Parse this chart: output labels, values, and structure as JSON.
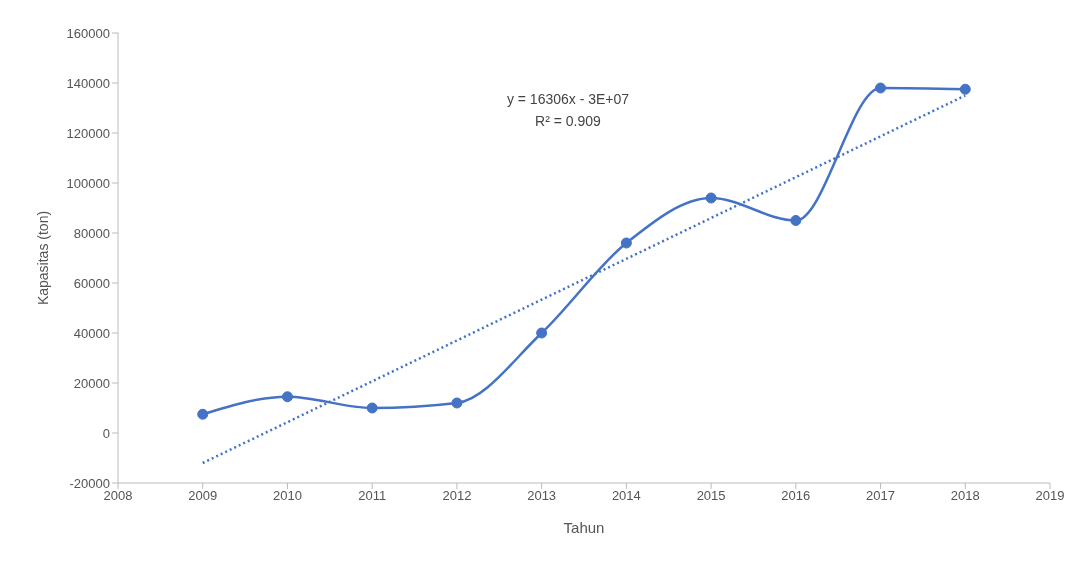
{
  "chart_data": {
    "type": "line",
    "xlabel": "Tahun",
    "ylabel": "Kapasitas (ton)",
    "x": [
      2009,
      2010,
      2011,
      2012,
      2013,
      2014,
      2015,
      2016,
      2017,
      2018
    ],
    "series": [
      {
        "color": "#4472c4",
        "values": [
          7500,
          14500,
          10000,
          12000,
          40000,
          76000,
          94000,
          85000,
          138000,
          137500
        ],
        "marker": "circle",
        "line_style": "solid"
      },
      {
        "color": "#4472c4",
        "x": [
          2009,
          2018
        ],
        "values": [
          -12000,
          135000
        ],
        "marker": "none",
        "line_style": "dotted"
      }
    ],
    "xlim": [
      2008,
      2019
    ],
    "xticks": [
      2008,
      2009,
      2010,
      2011,
      2012,
      2013,
      2014,
      2015,
      2016,
      2017,
      2018,
      2019
    ],
    "ylim": [
      -20000,
      160000
    ],
    "yticks": [
      -20000,
      0,
      20000,
      40000,
      60000,
      80000,
      100000,
      120000,
      140000,
      160000
    ],
    "grid": false,
    "annotations": [
      "y = 16306x - 3E+07",
      "R² = 0.909"
    ]
  }
}
